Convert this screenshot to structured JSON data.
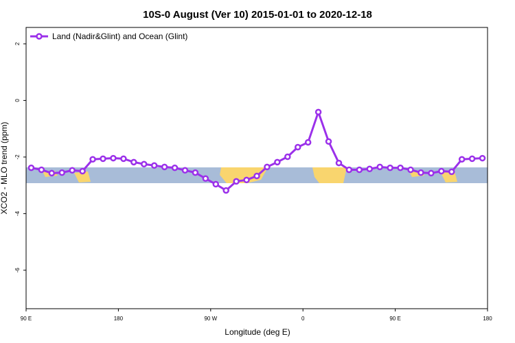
{
  "chart_data": {
    "type": "line",
    "title": "10S-0 August (Ver 10)   2015-01-01 to 2020-12-18",
    "x_label": "Longitude (deg E)",
    "y_label": "XCO2 - MLO trend (ppm)",
    "x": [
      95,
      105,
      115,
      125,
      135,
      145,
      155,
      165,
      175,
      185,
      195,
      205,
      215,
      225,
      235,
      245,
      255,
      265,
      275,
      285,
      295,
      305,
      315,
      325,
      335,
      345,
      355,
      365,
      375,
      385,
      395,
      405,
      415,
      425,
      435,
      445,
      455,
      465,
      475,
      485,
      495,
      505,
      515,
      525,
      535
    ],
    "series": [
      {
        "name": "Land (Nadir&Glint) and Ocean (Glint)",
        "color": "#9b30ea",
        "values": [
          -2.38,
          -2.45,
          -2.57,
          -2.55,
          -2.47,
          -2.5,
          -2.08,
          -2.06,
          -2.04,
          -2.06,
          -2.18,
          -2.25,
          -2.3,
          -2.35,
          -2.38,
          -2.47,
          -2.55,
          -2.76,
          -2.96,
          -3.18,
          -2.86,
          -2.81,
          -2.67,
          -2.35,
          -2.18,
          -1.99,
          -1.65,
          -1.48,
          -0.41,
          -1.45,
          -2.21,
          -2.45,
          -2.45,
          -2.42,
          -2.35,
          -2.38,
          -2.38,
          -2.45,
          -2.55,
          -2.57,
          -2.5,
          -2.52,
          -2.08,
          -2.06,
          -2.04
        ]
      }
    ],
    "xlim": [
      90,
      540
    ],
    "xticks": [
      {
        "value": 90,
        "label": "90 E"
      },
      180,
      {
        "value": 270,
        "label": "90 W"
      },
      {
        "value": 360,
        "label": "0"
      },
      {
        "value": 450,
        "label": "90 E"
      },
      {
        "value": 540,
        "label": "180"
      }
    ],
    "ylim": [
      -7.36,
      2.58
    ],
    "yticks": [
      2,
      0,
      -2,
      -4,
      -6
    ],
    "legend": "top-left"
  }
}
